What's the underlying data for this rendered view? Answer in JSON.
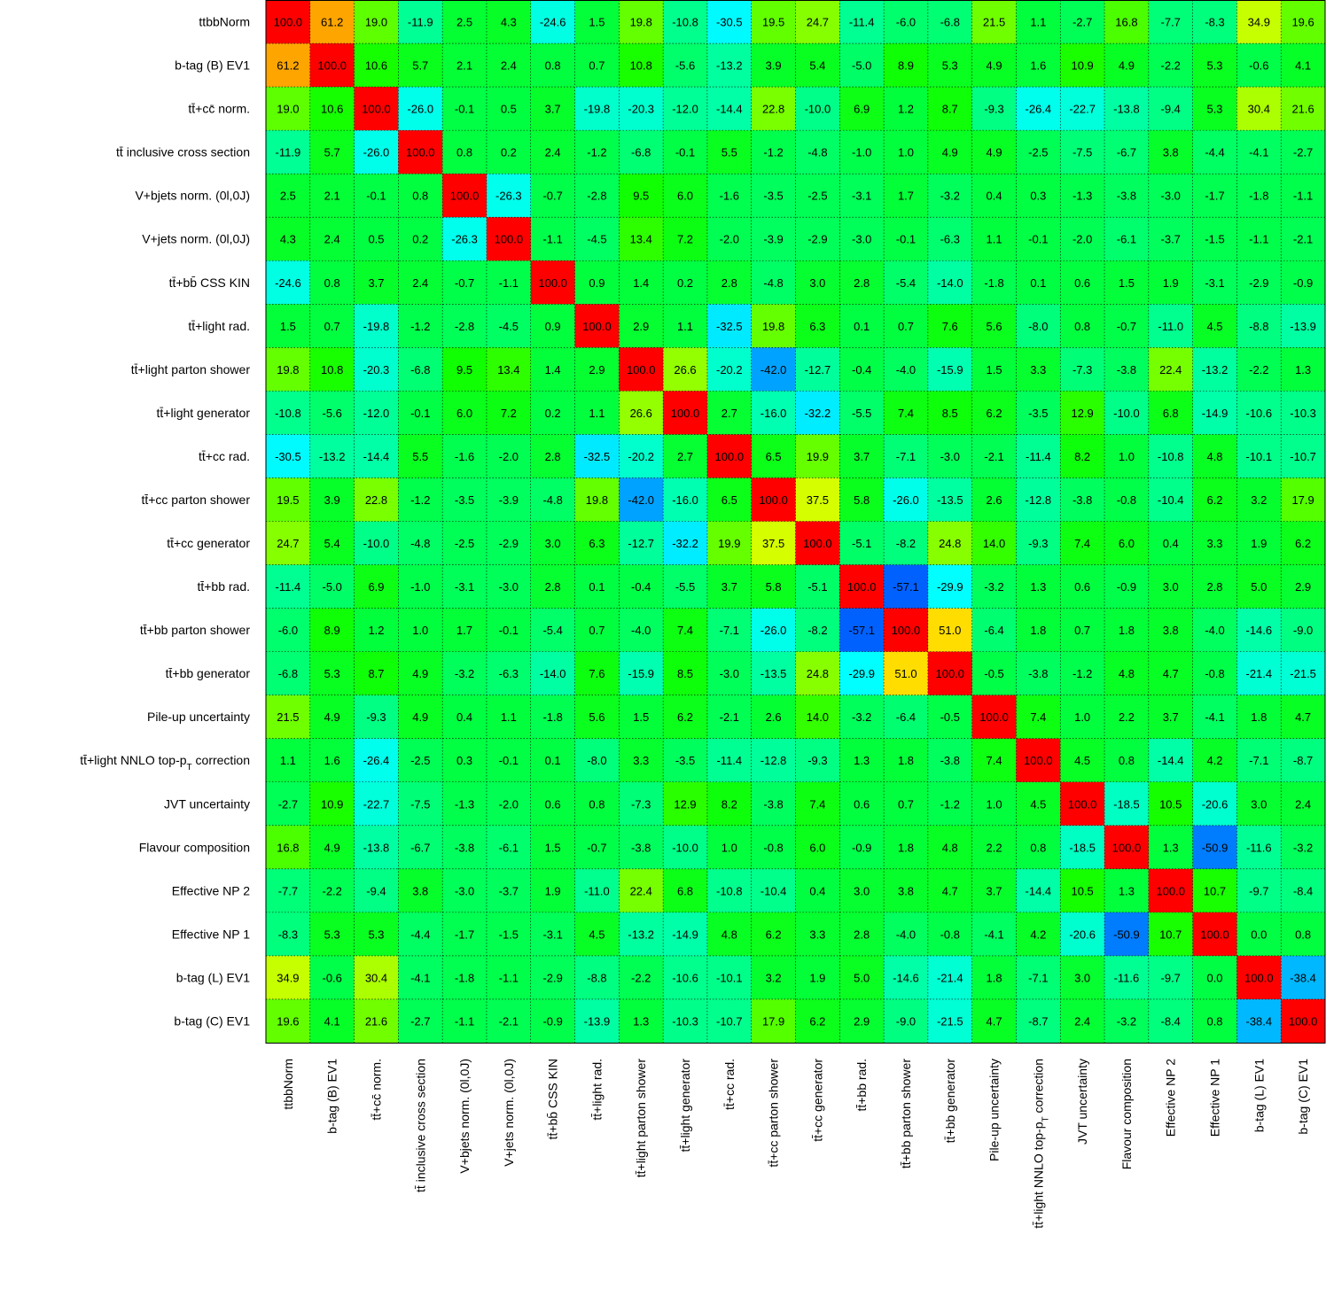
{
  "chart_data": {
    "type": "heatmap",
    "title": "",
    "labels": [
      "ttbbNorm",
      "b-tag (B) EV1",
      "tt̄+cc̄ norm.",
      "tt̄ inclusive cross section",
      "V+bjets norm. (0l,0J)",
      "V+jets norm. (0l,0J)",
      "tt̄+bb̄ CSS KIN",
      "tt̄+light rad.",
      "tt̄+light parton shower",
      "tt̄+light generator",
      "tt̄+cc rad.",
      "tt̄+cc parton shower",
      "tt̄+cc generator",
      "tt̄+bb rad.",
      "tt̄+bb parton shower",
      "tt̄+bb generator",
      "Pile-up uncertainty",
      "tt̄+light NNLO top-pT correction",
      "JVT uncertainty",
      "Flavour composition",
      "Effective NP 2",
      "Effective NP 1",
      "b-tag (L) EV1",
      "b-tag (C) EV1"
    ],
    "matrix": [
      [
        100.0,
        61.2,
        19.0,
        -11.9,
        2.5,
        4.3,
        -24.6,
        1.5,
        19.8,
        -10.8,
        -30.5,
        19.5,
        24.7,
        -11.4,
        -6.0,
        -6.8,
        21.5,
        1.1,
        -2.7,
        16.8,
        -7.7,
        -8.3,
        34.9,
        19.6
      ],
      [
        61.2,
        100.0,
        10.6,
        5.7,
        2.1,
        2.4,
        0.8,
        0.7,
        10.8,
        -5.6,
        -13.2,
        3.9,
        5.4,
        -5.0,
        8.9,
        5.3,
        4.9,
        1.6,
        10.9,
        4.9,
        -2.2,
        5.3,
        -0.6,
        4.1
      ],
      [
        19.0,
        10.6,
        100.0,
        -26.0,
        -0.1,
        0.5,
        3.7,
        -19.8,
        -20.3,
        -12.0,
        -14.4,
        22.8,
        -10.0,
        6.9,
        1.2,
        8.7,
        -9.3,
        -26.4,
        -22.7,
        -13.8,
        -9.4,
        5.3,
        30.4,
        21.6
      ],
      [
        -11.9,
        5.7,
        -26.0,
        100.0,
        0.8,
        0.2,
        2.4,
        -1.2,
        -6.8,
        -0.1,
        5.5,
        -1.2,
        -4.8,
        -1.0,
        1.0,
        4.9,
        4.9,
        -2.5,
        -7.5,
        -6.7,
        3.8,
        -4.4,
        -4.1,
        -2.7
      ],
      [
        2.5,
        2.1,
        -0.1,
        0.8,
        100.0,
        -26.3,
        -0.7,
        -2.8,
        9.5,
        6.0,
        -1.6,
        -3.5,
        -2.5,
        -3.1,
        1.7,
        -3.2,
        0.4,
        0.3,
        -1.3,
        -3.8,
        -3.0,
        -1.7,
        -1.8,
        -1.1
      ],
      [
        4.3,
        2.4,
        0.5,
        0.2,
        -26.3,
        100.0,
        -1.1,
        -4.5,
        13.4,
        7.2,
        -2.0,
        -3.9,
        -2.9,
        -3.0,
        -0.1,
        -6.3,
        1.1,
        -0.1,
        -2.0,
        -6.1,
        -3.7,
        -1.5,
        -1.1,
        -2.1
      ],
      [
        -24.6,
        0.8,
        3.7,
        2.4,
        -0.7,
        -1.1,
        100.0,
        0.9,
        1.4,
        0.2,
        2.8,
        -4.8,
        3.0,
        2.8,
        -5.4,
        -14.0,
        -1.8,
        0.1,
        0.6,
        1.5,
        1.9,
        -3.1,
        -2.9,
        -0.9
      ],
      [
        1.5,
        0.7,
        -19.8,
        -1.2,
        -2.8,
        -4.5,
        0.9,
        100.0,
        2.9,
        1.1,
        -32.5,
        19.8,
        6.3,
        0.1,
        0.7,
        7.6,
        5.6,
        -8.0,
        0.8,
        -0.7,
        -11.0,
        4.5,
        -8.8,
        -13.9
      ],
      [
        19.8,
        10.8,
        -20.3,
        -6.8,
        9.5,
        13.4,
        1.4,
        2.9,
        100.0,
        26.6,
        -20.2,
        -42.0,
        -12.7,
        -0.4,
        -4.0,
        -15.9,
        1.5,
        3.3,
        -7.3,
        -3.8,
        22.4,
        -13.2,
        -2.2,
        1.3
      ],
      [
        -10.8,
        -5.6,
        -12.0,
        -0.1,
        6.0,
        7.2,
        0.2,
        1.1,
        26.6,
        100.0,
        2.7,
        -16.0,
        -32.2,
        -5.5,
        7.4,
        8.5,
        6.2,
        -3.5,
        12.9,
        -10.0,
        6.8,
        -14.9,
        -10.6,
        -10.3
      ],
      [
        -30.5,
        -13.2,
        -14.4,
        5.5,
        -1.6,
        -2.0,
        2.8,
        -32.5,
        -20.2,
        2.7,
        100.0,
        6.5,
        19.9,
        3.7,
        -7.1,
        -3.0,
        -2.1,
        -11.4,
        8.2,
        1.0,
        -10.8,
        4.8,
        -10.1,
        -10.7
      ],
      [
        19.5,
        3.9,
        22.8,
        -1.2,
        -3.5,
        -3.9,
        -4.8,
        19.8,
        -42.0,
        -16.0,
        6.5,
        100.0,
        37.5,
        5.8,
        -26.0,
        -13.5,
        2.6,
        -12.8,
        -3.8,
        -0.8,
        -10.4,
        6.2,
        3.2,
        17.9
      ],
      [
        24.7,
        5.4,
        -10.0,
        -4.8,
        -2.5,
        -2.9,
        3.0,
        6.3,
        -12.7,
        -32.2,
        19.9,
        37.5,
        100.0,
        -5.1,
        -8.2,
        24.8,
        14.0,
        -9.3,
        7.4,
        6.0,
        0.4,
        3.3,
        1.9,
        6.2
      ],
      [
        -11.4,
        -5.0,
        6.9,
        -1.0,
        -3.1,
        -3.0,
        2.8,
        0.1,
        -0.4,
        -5.5,
        3.7,
        5.8,
        -5.1,
        100.0,
        -57.1,
        -29.9,
        -3.2,
        1.3,
        0.6,
        -0.9,
        3.0,
        2.8,
        5.0,
        2.9
      ],
      [
        -6.0,
        8.9,
        1.2,
        1.0,
        1.7,
        -0.1,
        -5.4,
        0.7,
        -4.0,
        7.4,
        -7.1,
        -26.0,
        -8.2,
        -57.1,
        100.0,
        51.0,
        -6.4,
        1.8,
        0.7,
        1.8,
        3.8,
        -4.0,
        -14.6,
        -9.0
      ],
      [
        -6.8,
        5.3,
        8.7,
        4.9,
        -3.2,
        -6.3,
        -14.0,
        7.6,
        -15.9,
        8.5,
        -3.0,
        -13.5,
        24.8,
        -29.9,
        51.0,
        100.0,
        -0.5,
        -3.8,
        -1.2,
        4.8,
        4.7,
        -0.8,
        -21.4,
        -21.5
      ],
      [
        21.5,
        4.9,
        -9.3,
        4.9,
        0.4,
        1.1,
        -1.8,
        5.6,
        1.5,
        6.2,
        -2.1,
        2.6,
        14.0,
        -3.2,
        -6.4,
        -0.5,
        100.0,
        7.4,
        1.0,
        2.2,
        3.7,
        -4.1,
        1.8,
        4.7
      ],
      [
        1.1,
        1.6,
        -26.4,
        -2.5,
        0.3,
        -0.1,
        0.1,
        -8.0,
        3.3,
        -3.5,
        -11.4,
        -12.8,
        -9.3,
        1.3,
        1.8,
        -3.8,
        7.4,
        100.0,
        4.5,
        0.8,
        -14.4,
        4.2,
        -7.1,
        -8.7
      ],
      [
        -2.7,
        10.9,
        -22.7,
        -7.5,
        -1.3,
        -2.0,
        0.6,
        0.8,
        -7.3,
        12.9,
        8.2,
        -3.8,
        7.4,
        0.6,
        0.7,
        -1.2,
        1.0,
        4.5,
        100.0,
        -18.5,
        10.5,
        -20.6,
        3.0,
        2.4
      ],
      [
        16.8,
        4.9,
        -13.8,
        -6.7,
        -3.8,
        -6.1,
        1.5,
        -0.7,
        -3.8,
        -10.0,
        1.0,
        -0.8,
        6.0,
        -0.9,
        1.8,
        4.8,
        2.2,
        0.8,
        -18.5,
        100.0,
        1.3,
        -50.9,
        -11.6,
        -3.2
      ],
      [
        -7.7,
        -2.2,
        -9.4,
        3.8,
        -3.0,
        -3.7,
        1.9,
        -11.0,
        22.4,
        6.8,
        -10.8,
        -10.4,
        0.4,
        3.0,
        3.8,
        4.7,
        3.7,
        -14.4,
        10.5,
        1.3,
        100.0,
        10.7,
        -9.7,
        -8.4
      ],
      [
        -8.3,
        5.3,
        5.3,
        -4.4,
        -1.7,
        -1.5,
        -3.1,
        4.5,
        -13.2,
        -14.9,
        4.8,
        6.2,
        3.3,
        2.8,
        -4.0,
        -0.8,
        -4.1,
        4.2,
        -20.6,
        -50.9,
        10.7,
        100.0,
        -0.0,
        0.8
      ],
      [
        34.9,
        -0.6,
        30.4,
        -4.1,
        -1.8,
        -1.1,
        -2.9,
        -8.8,
        -2.2,
        -10.6,
        -10.1,
        3.2,
        1.9,
        5.0,
        -14.6,
        -21.4,
        1.8,
        -7.1,
        3.0,
        -11.6,
        -9.7,
        -0.0,
        100.0,
        -38.4
      ],
      [
        19.6,
        4.1,
        21.6,
        -2.7,
        -1.1,
        -2.1,
        -0.9,
        -13.9,
        1.3,
        -10.3,
        -10.7,
        17.9,
        6.2,
        2.9,
        -9.0,
        -21.5,
        4.7,
        -8.7,
        2.4,
        -3.2,
        -8.4,
        0.8,
        -38.4,
        100.0
      ]
    ],
    "value_range": [
      -100,
      100
    ],
    "value_format": "one decimal",
    "grid": "dotted",
    "colorscale": [
      {
        "v": -60,
        "color": "#0055ff"
      },
      {
        "v": -40,
        "color": "#00aaff"
      },
      {
        "v": -30,
        "color": "#00ffff"
      },
      {
        "v": -20,
        "color": "#00ffcc"
      },
      {
        "v": -10,
        "color": "#00ff88"
      },
      {
        "v": 0,
        "color": "#00ff44"
      },
      {
        "v": 10,
        "color": "#11ff00"
      },
      {
        "v": 20,
        "color": "#66ff00"
      },
      {
        "v": 30,
        "color": "#aaff00"
      },
      {
        "v": 45,
        "color": "#ffff00"
      },
      {
        "v": 60,
        "color": "#ffaa00"
      },
      {
        "v": 100,
        "color": "#ff0000"
      }
    ]
  }
}
